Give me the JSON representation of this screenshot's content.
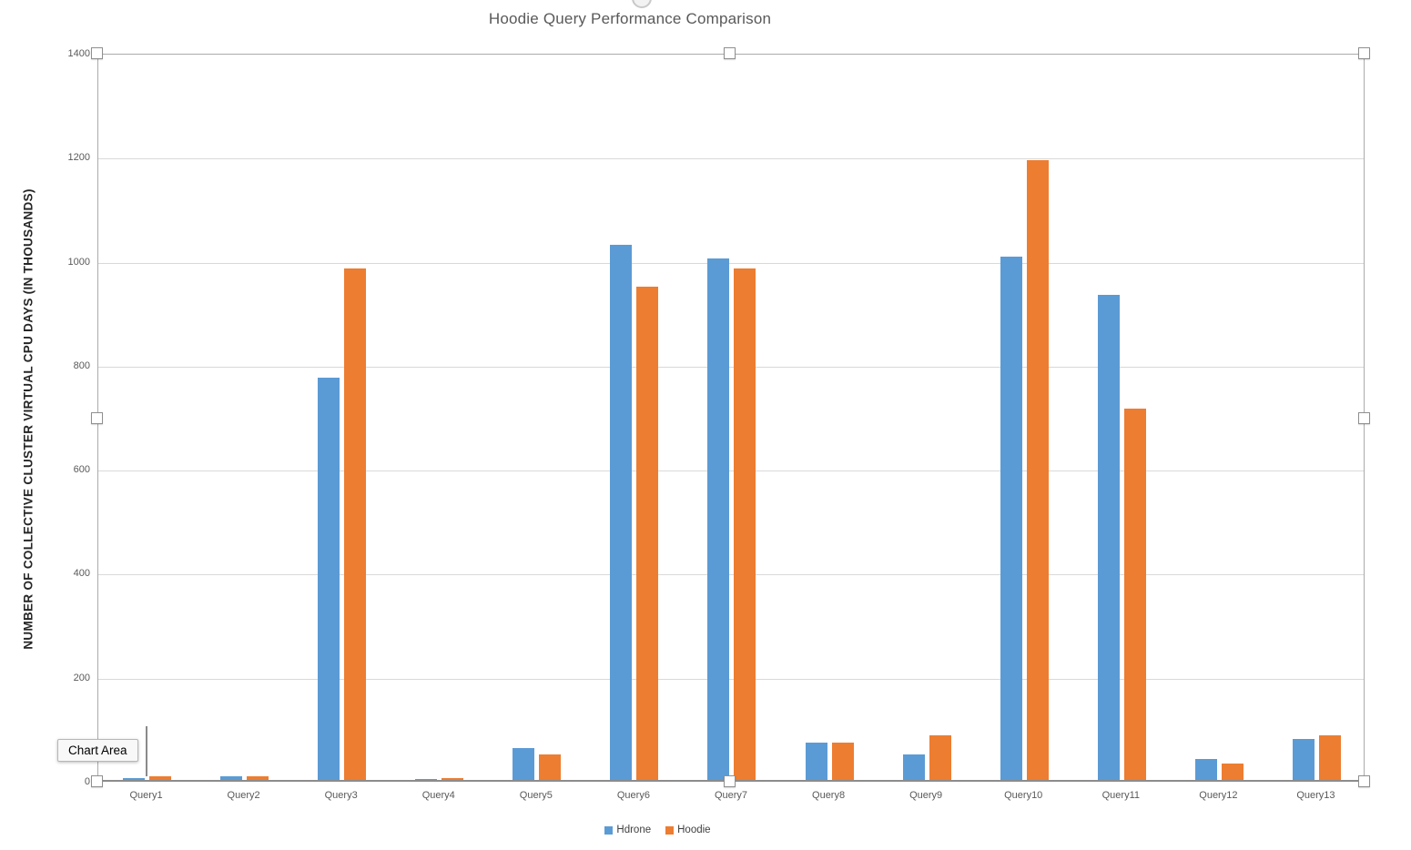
{
  "chart": {
    "title": "Hoodie Query Performance Comparison",
    "y_axis_title": "NUMBER OF COLLECTIVE CLUSTER VIRTUAL CPU DAYS (IN THOUSANDS)",
    "tooltip_label": "Chart Area"
  },
  "chart_data": {
    "type": "bar",
    "title": "Hoodie Query Performance Comparison",
    "xlabel": "",
    "ylabel": "NUMBER OF COLLECTIVE CLUSTER VIRTUAL CPU DAYS (IN THOUSANDS)",
    "ylim": [
      0,
      1400
    ],
    "yticks": [
      0,
      200,
      400,
      600,
      800,
      1000,
      1200,
      1400
    ],
    "grid": true,
    "legend_position": "bottom",
    "categories": [
      "Query1",
      "Query2",
      "Query3",
      "Query4",
      "Query5",
      "Query6",
      "Query7",
      "Query8",
      "Query9",
      "Query10",
      "Query11",
      "Query12",
      "Query13"
    ],
    "series": [
      {
        "name": "Hdrone",
        "color": "#5B9BD5",
        "values": [
          5,
          8,
          775,
          4,
          63,
          1030,
          1005,
          74,
          50,
          1008,
          934,
          42,
          81
        ]
      },
      {
        "name": "Hoodie",
        "color": "#ED7D31",
        "values": [
          8,
          8,
          985,
          5,
          51,
          950,
          985,
          74,
          87,
          1193,
          715,
          34,
          88
        ]
      }
    ]
  },
  "colors": {
    "series_hdrone": "#5B9BD5",
    "series_hoodie": "#ED7D31",
    "gridline": "#D9D9D9",
    "axis_text": "#595959"
  }
}
